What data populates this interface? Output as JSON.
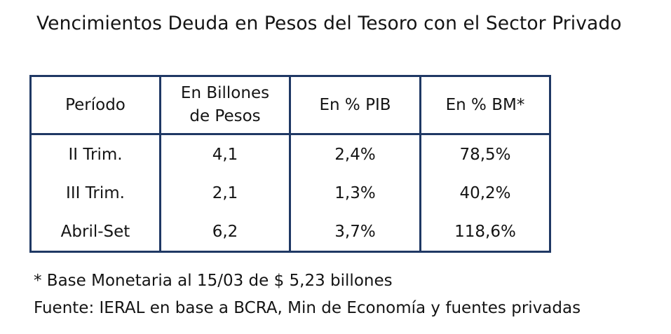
{
  "title": "Vencimientos Deuda en Pesos del Tesoro con el Sector Privado",
  "table": {
    "headers": {
      "periodo": "Período",
      "billones_line1": "En Billones",
      "billones_line2": "de Pesos",
      "pib": "En % PIB",
      "bm": "En % BM*"
    },
    "rows": [
      {
        "periodo": "II Trim.",
        "billones": "4,1",
        "pib": "2,4%",
        "bm": "78,5%"
      },
      {
        "periodo": "III Trim.",
        "billones": "2,1",
        "pib": "1,3%",
        "bm": "40,2%"
      },
      {
        "periodo": "Abril-Set",
        "billones": "6,2",
        "pib": "3,7%",
        "bm": "118,6%"
      }
    ]
  },
  "notes": {
    "footnote": "* Base Monetaria al 15/03 de $ 5,23 billones",
    "source": "Fuente: IERAL en base a BCRA, Min de Economía y fuentes privadas"
  },
  "colors": {
    "border": "#1f3864"
  }
}
